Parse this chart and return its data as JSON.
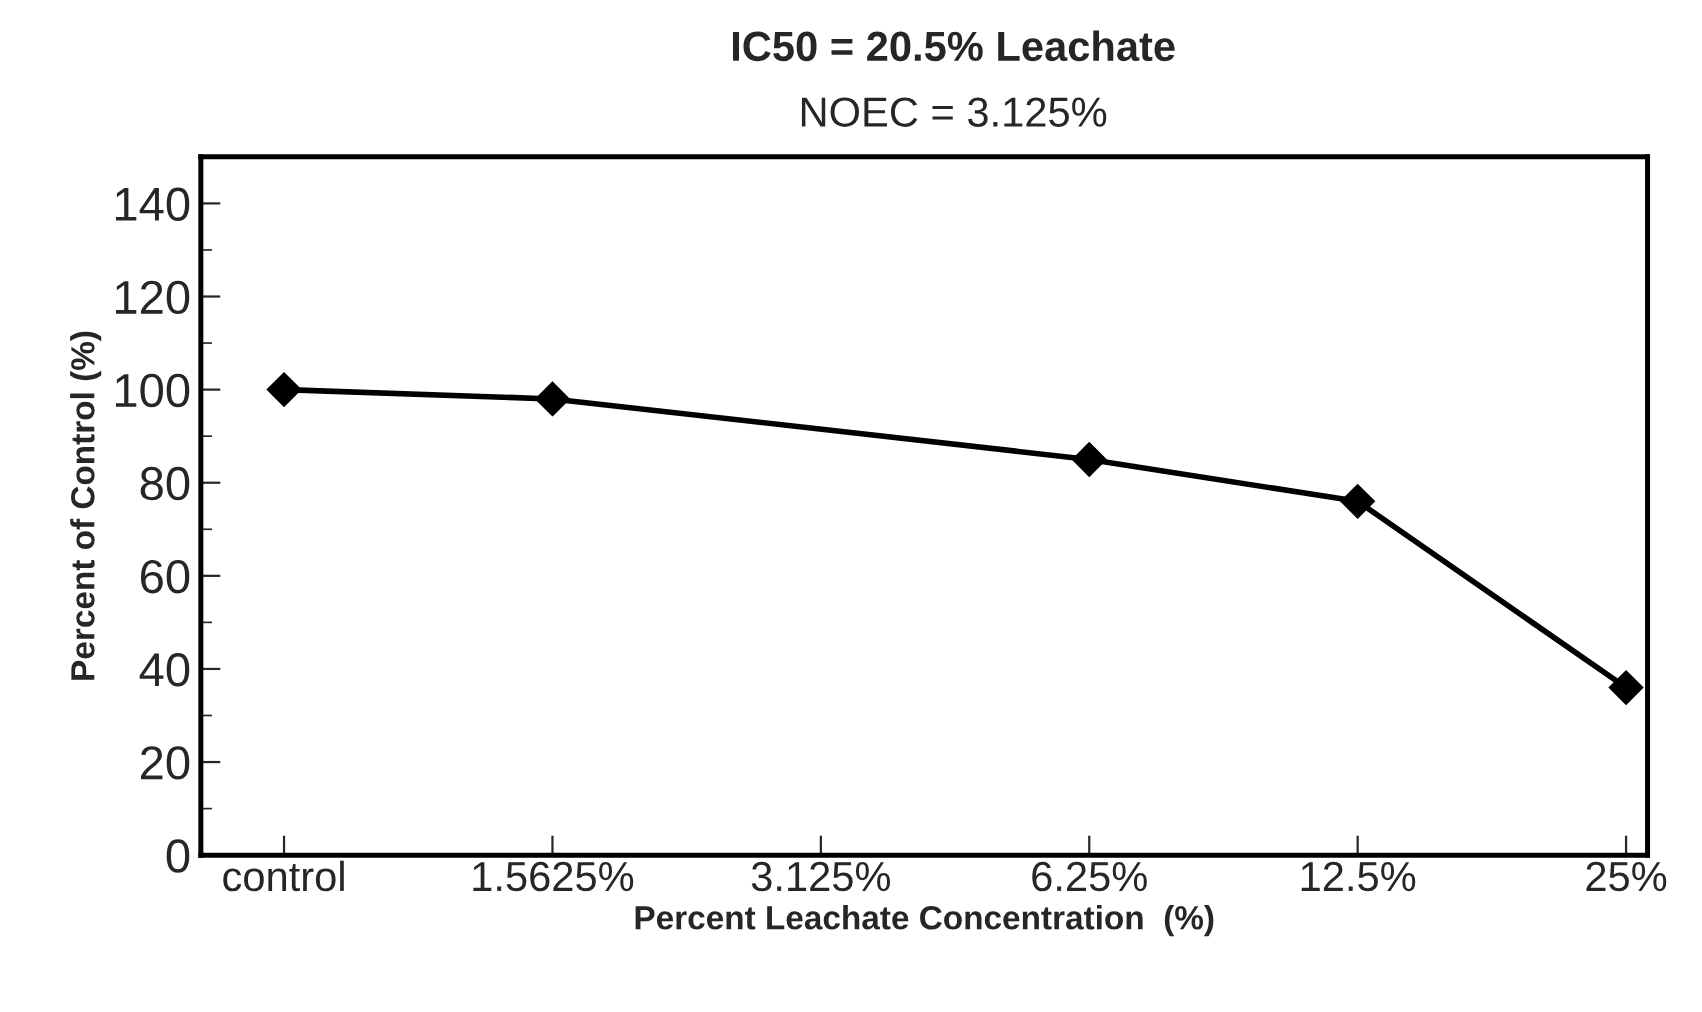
{
  "chart_data": {
    "type": "line",
    "title": "IC50 = 20.5% Leachate",
    "subtitle": "NOEC = 3.125%",
    "xlabel": "Percent Leachate Concentration  (%)",
    "ylabel": "Percent of Control (%)",
    "categories": [
      "control",
      "1.5625%",
      "3.125%",
      "6.25%",
      "12.5%",
      "25%"
    ],
    "series": [
      {
        "color": "#000000",
        "values": [
          100,
          98,
          null,
          85,
          76,
          36
        ]
      }
    ],
    "ylim": [
      0,
      150
    ],
    "yticks": [
      0,
      20,
      40,
      60,
      80,
      100,
      120,
      140
    ],
    "marker": "diamond",
    "line_style": "solid",
    "grid": false
  }
}
